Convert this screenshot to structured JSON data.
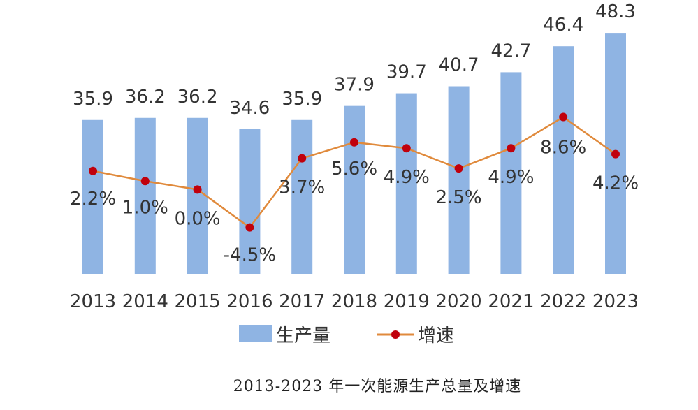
{
  "chart_data": {
    "type": "bar",
    "caption": "2013-2023 年一次能源生产总量及增速",
    "categories": [
      "2013",
      "2014",
      "2015",
      "2016",
      "2017",
      "2018",
      "2019",
      "2020",
      "2021",
      "2022",
      "2023"
    ],
    "series": [
      {
        "name": "生产量",
        "type": "bar",
        "values": [
          35.9,
          36.2,
          36.2,
          34.6,
          35.9,
          37.9,
          39.7,
          40.7,
          42.7,
          46.4,
          48.3
        ],
        "labels": [
          "35.9",
          "36.2",
          "36.2",
          "34.6",
          "35.9",
          "37.9",
          "39.7",
          "40.7",
          "42.7",
          "46.4",
          "48.3"
        ],
        "color": "#8fb4e3"
      },
      {
        "name": "增速",
        "type": "line",
        "values": [
          2.2,
          1.0,
          0.0,
          -4.5,
          3.7,
          5.6,
          4.9,
          2.5,
          4.9,
          8.6,
          4.2
        ],
        "labels": [
          "2.2%",
          "1.0%",
          "0.0%",
          "-4.5%",
          "3.7%",
          "5.6%",
          "4.9%",
          "2.5%",
          "4.9%",
          "8.6%",
          "4.2%"
        ],
        "line_color": "#e08a3c",
        "marker_color": "#c0000c"
      }
    ],
    "bar_axis_range": [
      14,
      50
    ],
    "growth_axis_range": [
      -10,
      20
    ],
    "grid": false,
    "legend_position": "bottom"
  }
}
